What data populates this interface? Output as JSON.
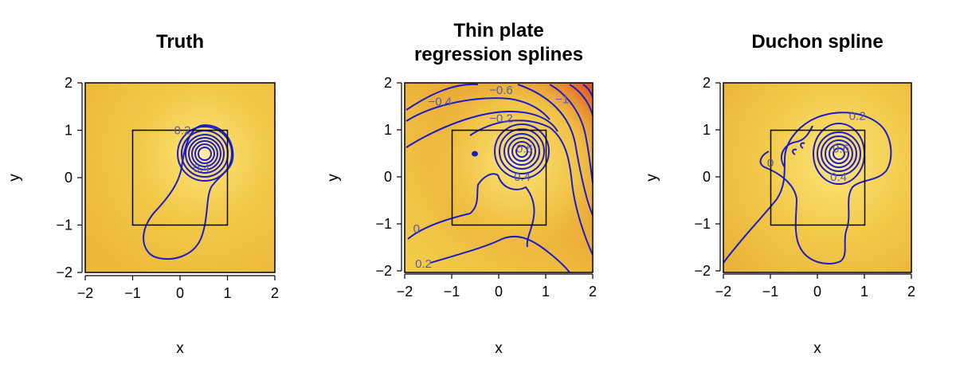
{
  "colors": {
    "contour": "#1c1cc8",
    "heat_low": "#f2cf4b",
    "heat_mid": "#eab03a",
    "heat_high": "#e0561e",
    "frame": "#000000"
  },
  "chart_data": [
    {
      "type": "heatmap",
      "title": "Truth",
      "xlabel": "x",
      "ylabel": "y",
      "xlim": [
        -2,
        2
      ],
      "ylim": [
        -2,
        2
      ],
      "xticks": [
        "−2",
        "−1",
        "0",
        "1",
        "2"
      ],
      "yticks": [
        "−2",
        "−1",
        "0",
        "1",
        "2"
      ],
      "inner_square": [
        -1,
        1
      ],
      "contour_labels": [
        {
          "text": "0.2",
          "x": 0.05,
          "y": 1.0
        },
        {
          "text": "0.4",
          "x": 0.45,
          "y": 0.2
        }
      ]
    },
    {
      "type": "heatmap",
      "title": "Thin plate regression splines",
      "title_lines": [
        "Thin plate",
        "regression splines"
      ],
      "xlabel": "x",
      "ylabel": "y",
      "xlim": [
        -2,
        2
      ],
      "ylim": [
        -2,
        2
      ],
      "xticks": [
        "−2",
        "−1",
        "0",
        "1",
        "2"
      ],
      "yticks": [
        "−2",
        "−1",
        "0",
        "1",
        "2"
      ],
      "inner_square": [
        -1,
        1
      ],
      "contour_labels": [
        {
          "text": "−0.4",
          "x": -1.25,
          "y": 1.6
        },
        {
          "text": "−0.6",
          "x": 0.05,
          "y": 1.85
        },
        {
          "text": "−0.2",
          "x": 0.05,
          "y": 1.25
        },
        {
          "text": "−1",
          "x": 1.35,
          "y": 1.65
        },
        {
          "text": "0.6",
          "x": 0.55,
          "y": 0.6
        },
        {
          "text": "0.4",
          "x": 0.5,
          "y": 0.0
        },
        {
          "text": "0",
          "x": -1.75,
          "y": -1.1
        },
        {
          "text": "0.2",
          "x": -1.6,
          "y": -1.85
        }
      ]
    },
    {
      "type": "heatmap",
      "title": "Duchon spline",
      "xlabel": "x",
      "ylabel": "y",
      "xlim": [
        -2,
        2
      ],
      "ylim": [
        -2,
        2
      ],
      "xticks": [
        "−2",
        "−1",
        "0",
        "1",
        "2"
      ],
      "yticks": [
        "−2",
        "−1",
        "0",
        "1",
        "2"
      ],
      "inner_square": [
        -1,
        1
      ],
      "contour_labels": [
        {
          "text": "0.2",
          "x": 0.85,
          "y": 1.3
        },
        {
          "text": "0",
          "x": -1.0,
          "y": 0.3
        },
        {
          "text": "0.6",
          "x": 0.5,
          "y": 0.6
        },
        {
          "text": "0.4",
          "x": 0.45,
          "y": 0.0
        }
      ]
    }
  ]
}
